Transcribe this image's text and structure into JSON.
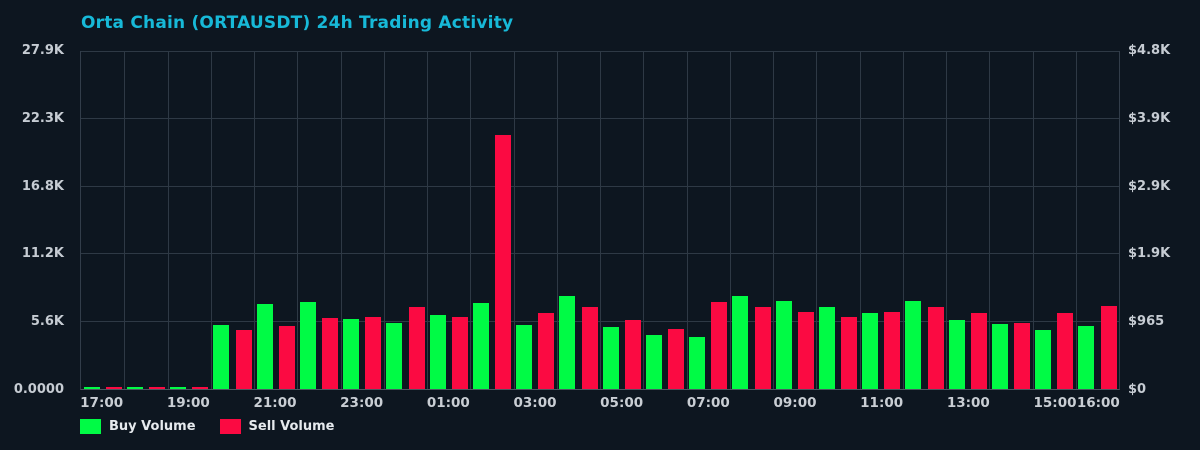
{
  "title": "Orta Chain (ORTAUSDT) 24h Trading Activity",
  "colors": {
    "background": "#0d1620",
    "title": "#17b9d8",
    "buy": "#00fb45",
    "sell": "#fb0a42",
    "grid": "#2e3945",
    "axis_line": "#4d5761",
    "tick_text": "#c6ccd3",
    "legend_text": "#e6eaee"
  },
  "legend": {
    "items": [
      {
        "label": "Buy Volume",
        "color": "#00fb45"
      },
      {
        "label": "Sell Volume",
        "color": "#fb0a42"
      }
    ],
    "position": "bottom-left"
  },
  "chart_data": {
    "type": "bar",
    "title": "Orta Chain (ORTAUSDT) 24h Trading Activity",
    "categories": [
      "17:00",
      "18:00",
      "19:00",
      "20:00",
      "21:00",
      "22:00",
      "23:00",
      "00:00",
      "01:00",
      "02:00",
      "03:00",
      "04:00",
      "05:00",
      "06:00",
      "07:00",
      "08:00",
      "09:00",
      "10:00",
      "11:00",
      "12:00",
      "13:00",
      "14:00",
      "15:00",
      "16:00"
    ],
    "series": [
      {
        "name": "Buy Volume",
        "color": "#00fb45",
        "values": [
          150,
          150,
          150,
          5300,
          7000,
          7200,
          5800,
          5500,
          6100,
          7100,
          5300,
          7700,
          5100,
          4500,
          4300,
          7700,
          7300,
          6800,
          6300,
          7300,
          5700,
          5400,
          4900,
          5200
        ]
      },
      {
        "name": "Sell Volume",
        "color": "#fb0a42",
        "values": [
          150,
          150,
          150,
          4900,
          5200,
          5900,
          6000,
          6800,
          6000,
          21000,
          6300,
          6800,
          5700,
          5000,
          7200,
          6800,
          6400,
          6000,
          6400,
          6800,
          6300,
          5500,
          6300,
          6900
        ]
      }
    ],
    "ylim": [
      0,
      27900
    ],
    "left_axis": {
      "ticks": [
        "0.0000",
        "5.6K",
        "11.2K",
        "16.8K",
        "22.3K",
        "27.9K"
      ],
      "values": [
        0,
        5580,
        11160,
        16740,
        22320,
        27900
      ]
    },
    "right_axis": {
      "ticks": [
        "$0",
        "$965",
        "$1.9K",
        "$2.9K",
        "$3.9K",
        "$4.8K"
      ]
    },
    "x_ticks": [
      {
        "index": 0,
        "label": "17:00"
      },
      {
        "index": 2,
        "label": "19:00"
      },
      {
        "index": 4,
        "label": "21:00"
      },
      {
        "index": 6,
        "label": "23:00"
      },
      {
        "index": 8,
        "label": "01:00"
      },
      {
        "index": 10,
        "label": "03:00"
      },
      {
        "index": 12,
        "label": "05:00"
      },
      {
        "index": 14,
        "label": "07:00"
      },
      {
        "index": 16,
        "label": "09:00"
      },
      {
        "index": 18,
        "label": "11:00"
      },
      {
        "index": 20,
        "label": "13:00"
      },
      {
        "index": 22,
        "label": "15:00"
      },
      {
        "index": 23,
        "label": "16:00"
      }
    ],
    "grid": true,
    "legend_position": "bottom-left"
  }
}
